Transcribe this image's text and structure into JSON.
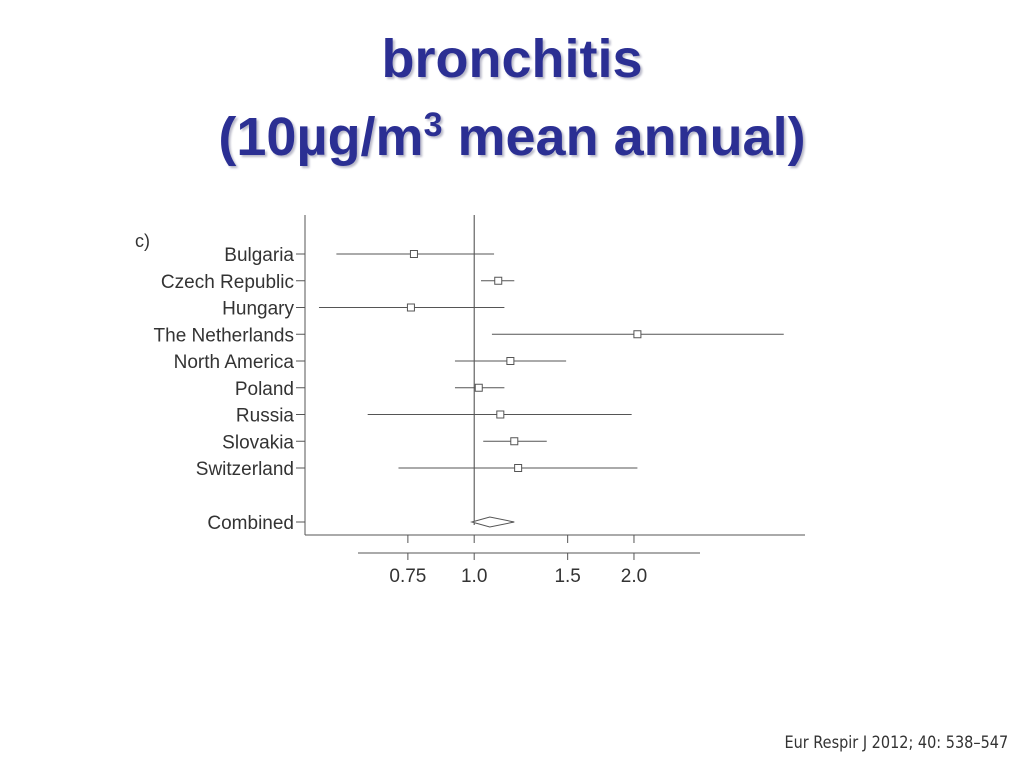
{
  "title": "bronchitis",
  "subtitle": {
    "before": "(10µg/m",
    "sup": "3",
    "after": " mean annual)"
  },
  "citation": "Eur Respir J 2012; 40: 538–547",
  "chart_data": {
    "type": "forest",
    "panel_label": "c)",
    "x_scale": "log",
    "categories": [
      "Bulgaria",
      "Czech Republic",
      "Hungary",
      "The Netherlands",
      "North America",
      "Poland",
      "Russia",
      "Slovakia",
      "Switzerland"
    ],
    "values": [
      0.77,
      1.11,
      0.76,
      2.03,
      1.17,
      1.02,
      1.12,
      1.19,
      1.21
    ],
    "lower": [
      0.55,
      1.03,
      0.51,
      1.08,
      0.92,
      0.92,
      0.63,
      1.04,
      0.72
    ],
    "upper": [
      1.09,
      1.19,
      1.14,
      3.83,
      1.49,
      1.14,
      1.98,
      1.37,
      2.03
    ],
    "combined": {
      "label": "Combined",
      "value": 1.07,
      "lower": 0.99,
      "upper": 1.19
    },
    "reference": 1,
    "xlim": [
      0.48,
      4.2
    ],
    "xticks": [
      0.75,
      {
        "value": 1,
        "label": "1.0"
      },
      1.5,
      {
        "value": 2,
        "label": "2.0"
      }
    ],
    "color": "#555555"
  }
}
